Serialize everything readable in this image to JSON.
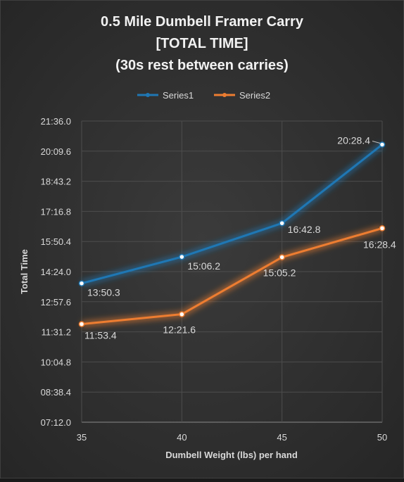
{
  "chart_data": {
    "type": "line",
    "title_lines": [
      "0.5 Mile Dumbell Framer Carry",
      "[TOTAL TIME]",
      "(30s rest between carries)"
    ],
    "xlabel": "Dumbell Weight (lbs) per hand",
    "ylabel": "Total Time",
    "x": [
      35,
      40,
      45,
      50
    ],
    "x_tick_labels": [
      "35",
      "40",
      "45",
      "50"
    ],
    "y_tick_labels": [
      "07:12.0",
      "08:38.4",
      "10:04.8",
      "11:31.2",
      "12:57.6",
      "14:24.0",
      "15:50.4",
      "17:16.8",
      "18:43.2",
      "20:09.6",
      "21:36.0"
    ],
    "ylim_seconds": [
      432,
      1296
    ],
    "grid": true,
    "legend_position": "top-center",
    "series": [
      {
        "name": "Series1",
        "color": "#1f77b4",
        "values_seconds": [
          830.3,
          906.2,
          1002.8,
          1228.4
        ],
        "data_labels": [
          "13:50.3",
          "15:06.2",
          "16:42.8",
          "20:28.4"
        ]
      },
      {
        "name": "Series2",
        "color": "#ed7d31",
        "values_seconds": [
          713.4,
          741.6,
          905.2,
          988.4
        ],
        "data_labels": [
          "11:53.4",
          "12:21.6",
          "15:05.2",
          "16:28.4"
        ]
      }
    ]
  }
}
